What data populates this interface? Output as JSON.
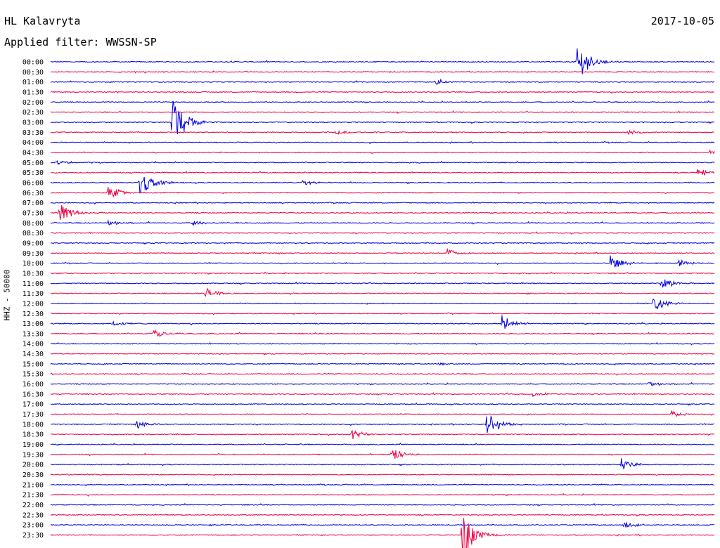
{
  "header": {
    "station": "HL Kalavryta",
    "filter_text": "Applied filter: WWSSN-SP",
    "date": "2017-10-05"
  },
  "chart_data": {
    "type": "line",
    "chart_kind": "helicorder",
    "title": "HL Kalavryta",
    "subtitle": "Applied filter: WWSSN-SP",
    "date": "2017-10-05",
    "ylabel": "HHZ - 50000",
    "xlabel": "",
    "row_minutes": 30,
    "x_unit": "minutes past row start",
    "xlim": [
      0,
      30
    ],
    "colors": [
      "#0000dd",
      "#ee0044"
    ],
    "tick_labels": [
      "00:00",
      "00:30",
      "01:00",
      "01:30",
      "02:00",
      "02:30",
      "03:00",
      "03:30",
      "04:00",
      "04:30",
      "05:00",
      "05:30",
      "06:00",
      "06:30",
      "07:00",
      "07:30",
      "08:00",
      "08:30",
      "09:00",
      "09:30",
      "10:00",
      "10:30",
      "11:00",
      "11:30",
      "12:00",
      "12:30",
      "13:00",
      "13:30",
      "14:00",
      "14:30",
      "15:00",
      "15:30",
      "16:00",
      "16:30",
      "17:00",
      "17:30",
      "18:00",
      "18:30",
      "19:00",
      "19:30",
      "20:00",
      "20:30",
      "21:00",
      "21:30",
      "22:00",
      "22:30",
      "23:00",
      "23:30"
    ],
    "events": [
      {
        "row": "00:00",
        "minute": 23.8,
        "amplitude": 30
      },
      {
        "row": "01:00",
        "minute": 17.4,
        "amplitude": 4
      },
      {
        "row": "03:00",
        "minute": 5.5,
        "amplitude": 45
      },
      {
        "row": "03:30",
        "minute": 12.9,
        "amplitude": 3
      },
      {
        "row": "03:30",
        "minute": 26.1,
        "amplitude": 4
      },
      {
        "row": "04:30",
        "minute": 29.8,
        "amplitude": 4
      },
      {
        "row": "05:00",
        "minute": 0.3,
        "amplitude": 4
      },
      {
        "row": "05:30",
        "minute": 29.2,
        "amplitude": 7
      },
      {
        "row": "06:00",
        "minute": 4.0,
        "amplitude": 22
      },
      {
        "row": "06:00",
        "minute": 11.4,
        "amplitude": 4
      },
      {
        "row": "06:30",
        "minute": 2.6,
        "amplitude": 11
      },
      {
        "row": "07:30",
        "minute": 0.4,
        "amplitude": 15
      },
      {
        "row": "08:00",
        "minute": 2.6,
        "amplitude": 4
      },
      {
        "row": "08:00",
        "minute": 6.4,
        "amplitude": 4
      },
      {
        "row": "09:30",
        "minute": 17.9,
        "amplitude": 6
      },
      {
        "row": "10:00",
        "minute": 25.3,
        "amplitude": 12
      },
      {
        "row": "10:00",
        "minute": 28.4,
        "amplitude": 5
      },
      {
        "row": "11:00",
        "minute": 27.6,
        "amplitude": 10
      },
      {
        "row": "11:30",
        "minute": 7.0,
        "amplitude": 9
      },
      {
        "row": "12:00",
        "minute": 27.2,
        "amplitude": 14
      },
      {
        "row": "13:00",
        "minute": 20.4,
        "amplitude": 12
      },
      {
        "row": "13:00",
        "minute": 2.8,
        "amplitude": 4
      },
      {
        "row": "13:30",
        "minute": 4.6,
        "amplitude": 7
      },
      {
        "row": "15:00",
        "minute": 17.5,
        "amplitude": 3
      },
      {
        "row": "16:00",
        "minute": 27.0,
        "amplitude": 4
      },
      {
        "row": "16:30",
        "minute": 21.8,
        "amplitude": 3
      },
      {
        "row": "17:30",
        "minute": 28.0,
        "amplitude": 5
      },
      {
        "row": "18:00",
        "minute": 3.9,
        "amplitude": 6
      },
      {
        "row": "18:00",
        "minute": 19.7,
        "amplitude": 20
      },
      {
        "row": "18:30",
        "minute": 13.6,
        "amplitude": 8
      },
      {
        "row": "19:30",
        "minute": 15.4,
        "amplitude": 11
      },
      {
        "row": "20:00",
        "minute": 25.8,
        "amplitude": 8
      },
      {
        "row": "23:00",
        "minute": 25.9,
        "amplitude": 5
      },
      {
        "row": "23:30",
        "minute": 18.6,
        "amplitude": 38
      }
    ]
  }
}
